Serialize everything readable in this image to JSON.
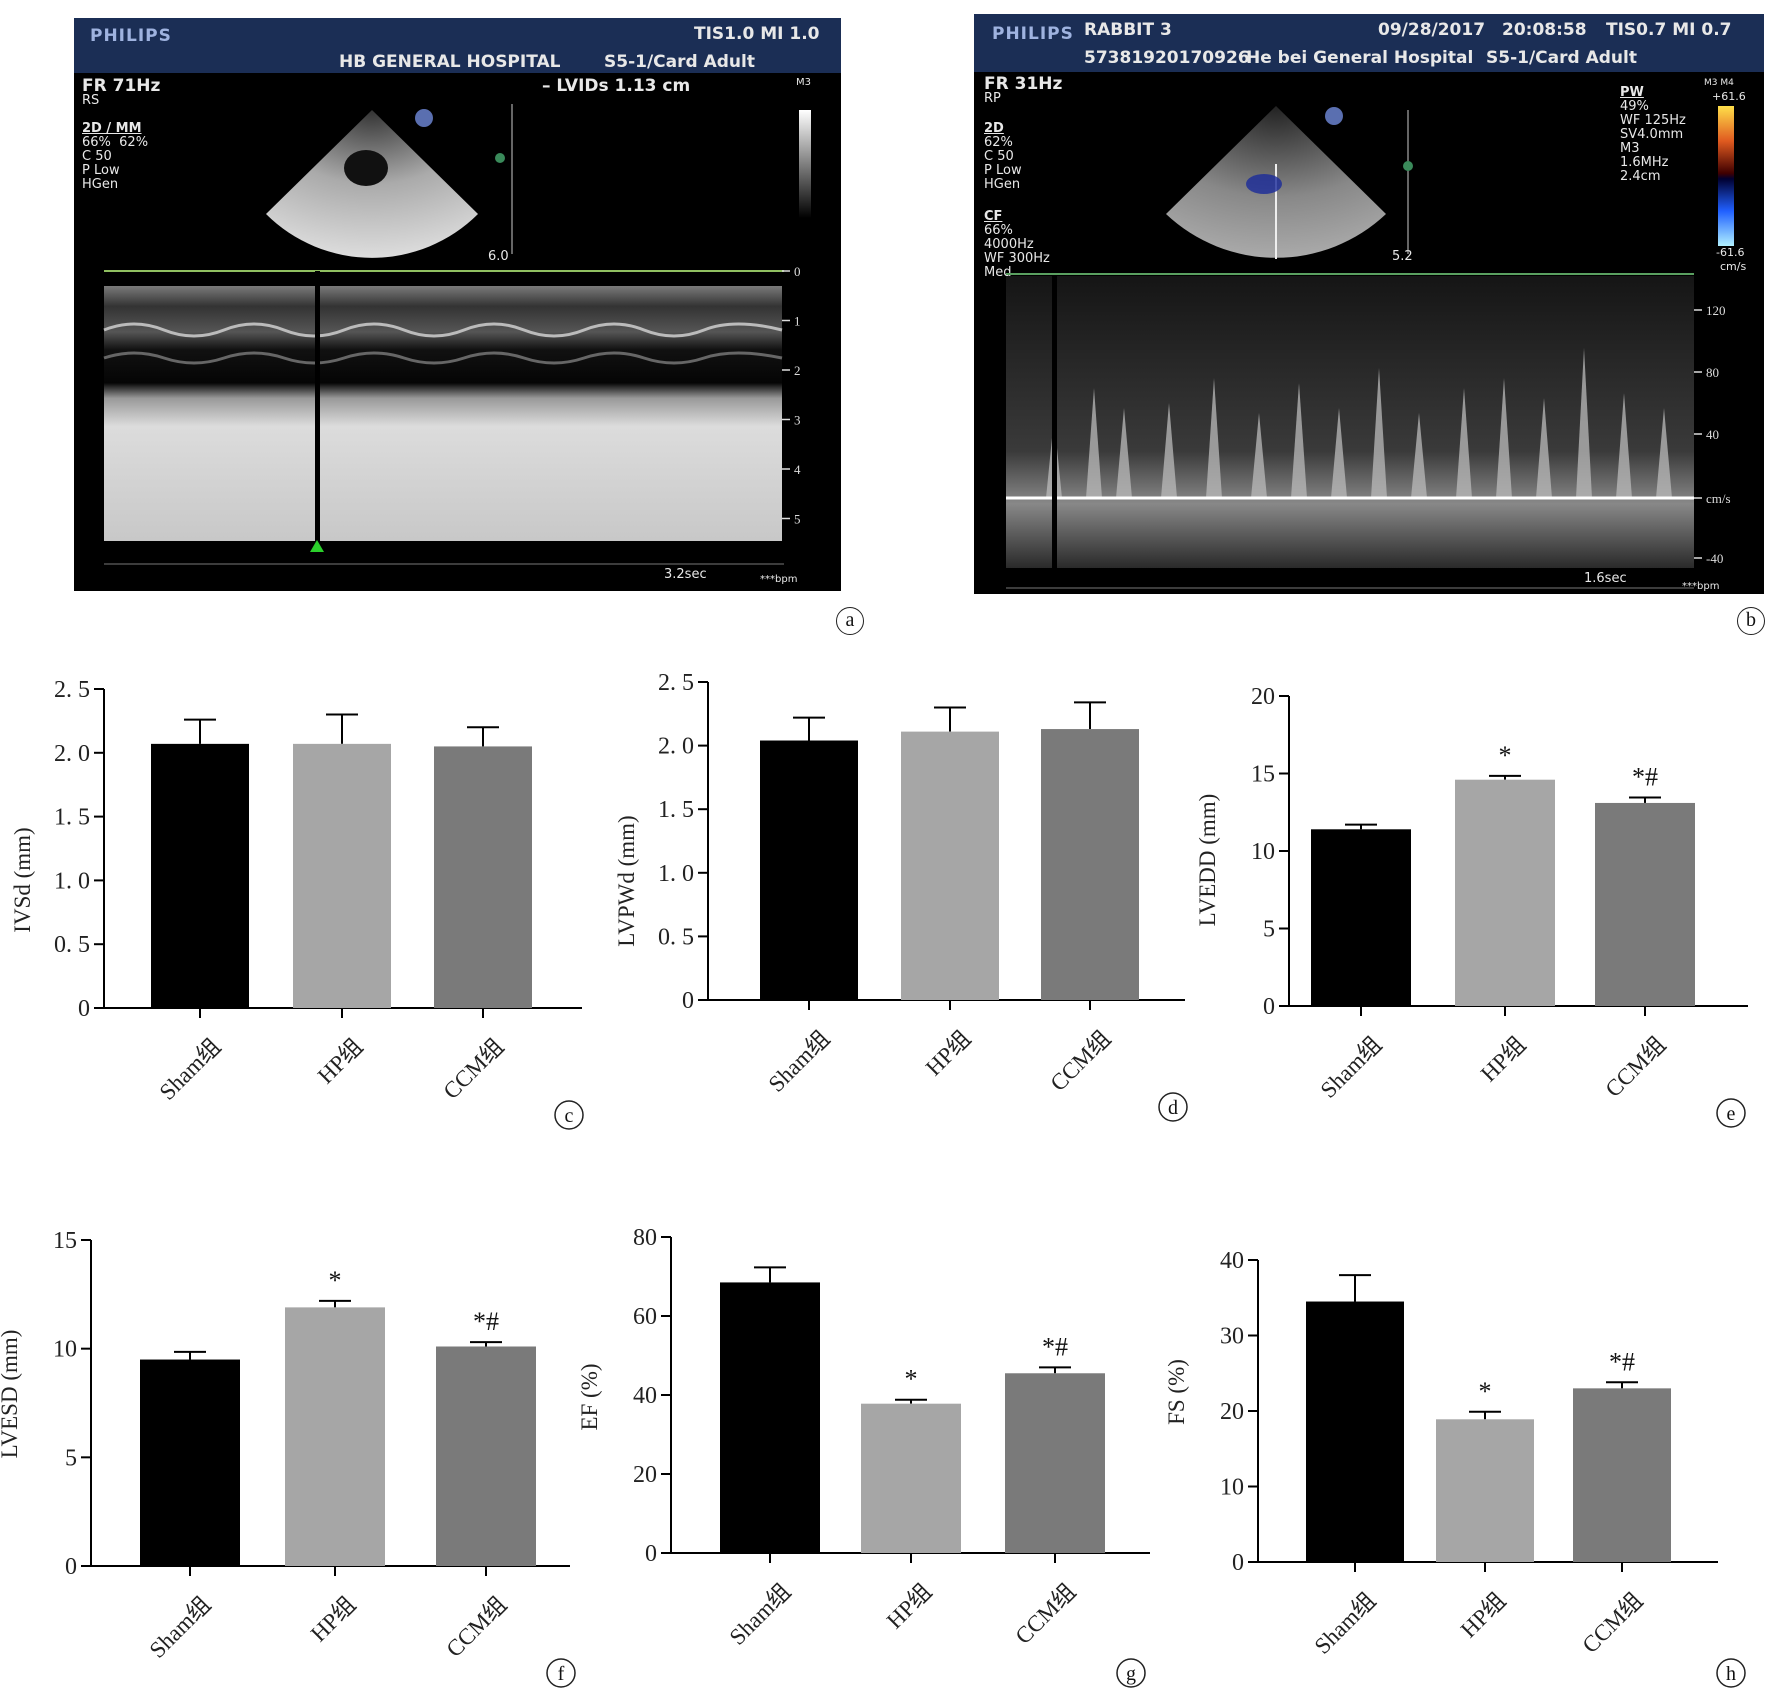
{
  "panel_a": {
    "letter": "a",
    "brand": "PHILIPS",
    "tis_mi": "TIS1.0   MI 1.0",
    "hospital": "HB GENERAL HOSPITAL",
    "probe": "S5-1/Card Adult",
    "measure": "– LVIDs   1.13 cm",
    "fr": "FR 71Hz",
    "rs": "RS",
    "side_title": "2D / MM",
    "side_params": "66%  62%\nC 50\nP Low\nHGen",
    "m3": "M3",
    "depth_label": "6.0",
    "time_label": "3.2sec",
    "bpm_label": "***bpm",
    "scale_ticks": [
      "0",
      "1",
      "2",
      "3",
      "4",
      "5"
    ]
  },
  "panel_b": {
    "letter": "b",
    "brand": "PHILIPS",
    "patient": "RABBIT 3",
    "id": "57381920170926",
    "hospital": "He bei General Hospital",
    "date": "09/28/2017",
    "time": "20:08:58",
    "tis_mi": "TIS0.7   MI 0.7",
    "probe": "S5-1/Card Adult",
    "fr": "FR 31Hz",
    "rp": "RP",
    "side_title": "2D",
    "side_params": "62%\nC 50\nP Low\nHGen",
    "cf_title": "CF",
    "cf_params": "66%\n4000Hz\nWF 300Hz\nMed",
    "pw_title": "PW",
    "pw_params": "49%\nWF 125Hz\nSV4.0mm\nM3\n1.6MHz\n2.4cm",
    "scale_top": "+61.6",
    "scale_bottom": "-61.6",
    "scale_unit": "cm/s",
    "badge": "M3 M4",
    "depth_label": "5.2",
    "time_label": "1.6sec",
    "bpm_label": "***bpm",
    "vel_ticks": [
      "120",
      "80",
      "40",
      "cm/s",
      "-40"
    ]
  },
  "chart_data": [
    {
      "id": "c",
      "type": "bar",
      "categories": [
        "Sham组",
        "HP组",
        "CCM组"
      ],
      "values": [
        2.07,
        2.07,
        2.05
      ],
      "errors": [
        0.19,
        0.23,
        0.15
      ],
      "annotations": [
        "",
        "",
        ""
      ],
      "ylabel": "IVSd (mm)",
      "ylim": [
        0,
        2.5
      ],
      "yticks": [
        "0",
        "0. 5",
        "1. 0",
        "1. 5",
        "2. 0",
        "2. 5"
      ],
      "colors": [
        "#000000",
        "#a6a6a6",
        "#7a7a7a"
      ]
    },
    {
      "id": "d",
      "type": "bar",
      "categories": [
        "Sham组",
        "HP组",
        "CCM组"
      ],
      "values": [
        2.04,
        2.11,
        2.13
      ],
      "errors": [
        0.18,
        0.19,
        0.21
      ],
      "annotations": [
        "",
        "",
        ""
      ],
      "ylabel": "LVPWd (mm)",
      "ylim": [
        0,
        2.5
      ],
      "yticks": [
        "0",
        "0. 5",
        "1. 0",
        "1. 5",
        "2. 0",
        "2. 5"
      ],
      "colors": [
        "#000000",
        "#a6a6a6",
        "#7a7a7a"
      ]
    },
    {
      "id": "e",
      "type": "bar",
      "categories": [
        "Sham组",
        "HP组",
        "CCM组"
      ],
      "values": [
        11.4,
        14.6,
        13.1
      ],
      "errors": [
        0.3,
        0.25,
        0.35
      ],
      "annotations": [
        "",
        "*",
        "*#"
      ],
      "ylabel": "LVEDD (mm)",
      "ylim": [
        0,
        20
      ],
      "yticks": [
        "0",
        "5",
        "10",
        "15",
        "20"
      ],
      "colors": [
        "#000000",
        "#a6a6a6",
        "#7a7a7a"
      ]
    },
    {
      "id": "f",
      "type": "bar",
      "categories": [
        "Sham组",
        "HP组",
        "CCM组"
      ],
      "values": [
        9.5,
        11.9,
        10.1
      ],
      "errors": [
        0.35,
        0.3,
        0.2
      ],
      "annotations": [
        "",
        "*",
        "*#"
      ],
      "ylabel": "LVESD (mm)",
      "ylim": [
        0,
        15
      ],
      "yticks": [
        "0",
        "5",
        "10",
        "15"
      ],
      "colors": [
        "#000000",
        "#a6a6a6",
        "#7a7a7a"
      ]
    },
    {
      "id": "g",
      "type": "bar",
      "categories": [
        "Sham组",
        "HP组",
        "CCM组"
      ],
      "values": [
        68.5,
        37.8,
        45.5
      ],
      "errors": [
        3.8,
        1.0,
        1.5
      ],
      "annotations": [
        "",
        "*",
        "*#"
      ],
      "ylabel": "EF (%)",
      "ylim": [
        0,
        80
      ],
      "yticks": [
        "0",
        "20",
        "40",
        "60",
        "80"
      ],
      "colors": [
        "#000000",
        "#a6a6a6",
        "#7a7a7a"
      ]
    },
    {
      "id": "h",
      "type": "bar",
      "categories": [
        "Sham组",
        "HP组",
        "CCM组"
      ],
      "values": [
        34.5,
        18.9,
        23.0
      ],
      "errors": [
        3.5,
        1.0,
        0.8
      ],
      "annotations": [
        "",
        "*",
        "*#"
      ],
      "ylabel": "FS (%)",
      "ylim": [
        0,
        40
      ],
      "yticks": [
        "0",
        "10",
        "20",
        "30",
        "40"
      ],
      "colors": [
        "#000000",
        "#a6a6a6",
        "#7a7a7a"
      ]
    }
  ]
}
